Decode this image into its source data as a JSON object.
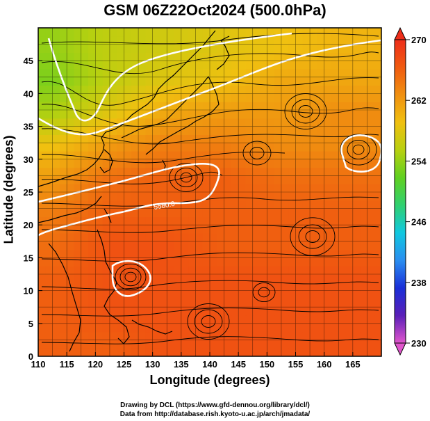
{
  "title": "GSM 06Z22Oct2024 (500.0hPa)",
  "xlabel": "Longitude (degrees)",
  "ylabel": "Latitude  (degrees)",
  "credits": [
    "Drawing by DCL (https://www.gfd-dennou.org/library/dcl/)",
    "Data from http://database.rish.kyoto-u.ac.jp/arch/jmadata/"
  ],
  "contour_label": "5580.0",
  "colors": {
    "frame": "#000000",
    "contour": "#ffffff",
    "streamline": "#000000",
    "coast": "#000000"
  },
  "chart_data": {
    "type": "heatmap",
    "title": "GSM 06Z22Oct2024 (500.0hPa)",
    "xlabel": "Longitude (degrees)",
    "ylabel": "Latitude  (degrees)",
    "xlim": [
      110,
      170
    ],
    "ylim": [
      0,
      50
    ],
    "xticks": [
      110,
      115,
      120,
      125,
      130,
      135,
      140,
      145,
      150,
      155,
      160,
      165
    ],
    "yticks": [
      0,
      5,
      10,
      15,
      20,
      25,
      30,
      35,
      40,
      45
    ],
    "grid": true,
    "colorbar": {
      "range": [
        230,
        270
      ],
      "ticks": [
        230,
        238,
        246,
        254,
        262,
        270
      ],
      "colors": [
        "#e055cc",
        "#5a1fb8",
        "#1a2fd8",
        "#2a8ef0",
        "#10c8e0",
        "#30d070",
        "#60d020",
        "#b8d010",
        "#f0c010",
        "#f09010",
        "#f05a10",
        "#ee2e1a"
      ]
    },
    "field": {
      "lats": [
        47,
        42,
        37,
        32,
        27,
        22,
        17,
        12,
        7,
        2
      ],
      "lons": [
        112.5,
        122.5,
        132.5,
        142.5,
        152.5,
        162.5
      ],
      "values": [
        [
          254,
          256,
          257,
          258,
          259,
          260
        ],
        [
          253,
          256,
          258,
          259,
          261,
          261
        ],
        [
          255,
          258,
          261,
          262,
          262,
          263
        ],
        [
          259,
          262,
          264,
          264,
          263,
          263
        ],
        [
          262,
          265,
          266,
          266,
          265,
          265
        ],
        [
          264,
          266,
          266,
          266,
          266,
          266
        ],
        [
          265,
          267,
          267,
          266,
          266,
          266
        ],
        [
          266,
          267,
          267,
          267,
          267,
          267
        ],
        [
          266,
          267,
          267,
          267,
          267,
          267
        ],
        [
          266,
          266,
          267,
          267,
          267,
          267
        ]
      ]
    },
    "contour_level": "5580.0"
  }
}
